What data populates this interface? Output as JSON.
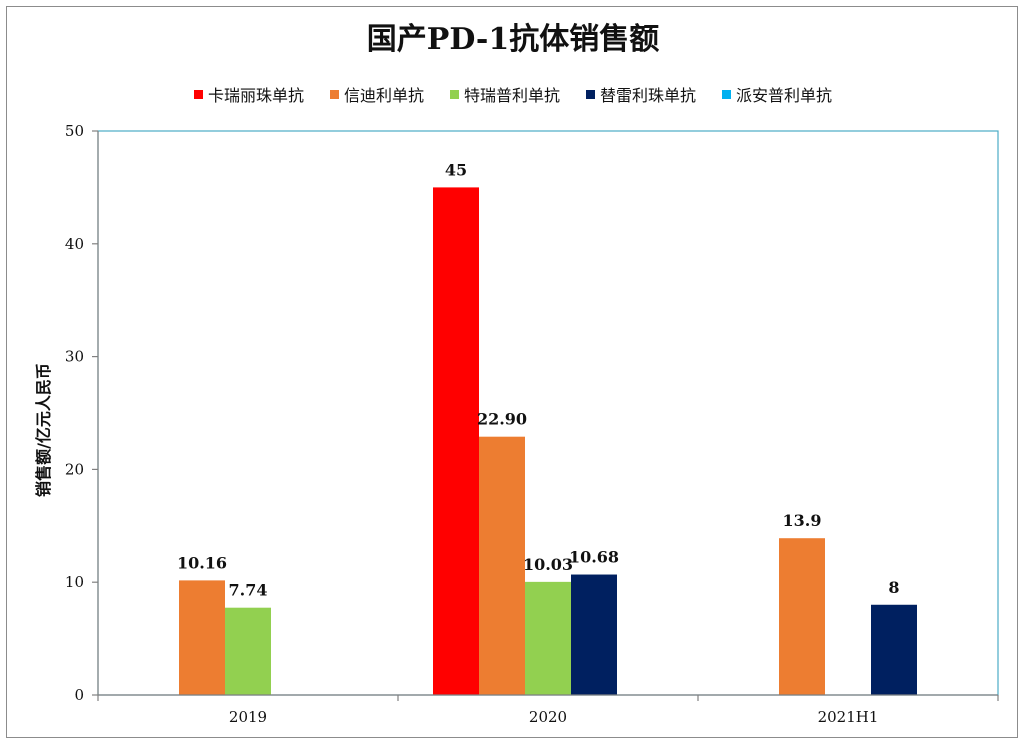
{
  "chart_data": {
    "type": "bar",
    "title": "国产PD-1抗体销售额",
    "ylabel": "销售额/亿元人民币",
    "xlabel": "",
    "ylim": [
      0,
      50
    ],
    "yticks": [
      0,
      10,
      20,
      30,
      40,
      50
    ],
    "categories": [
      "2019",
      "2020",
      "2021H1"
    ],
    "legend_position": "top",
    "grid": false,
    "series": [
      {
        "name": "卡瑞丽珠单抗",
        "color": "#ff0000",
        "values": [
          null,
          45,
          null
        ],
        "labels": [
          "",
          "45",
          ""
        ]
      },
      {
        "name": "信迪利单抗",
        "color": "#ed7d31",
        "values": [
          10.16,
          22.9,
          13.9
        ],
        "labels": [
          "10.16",
          "22.90",
          "13.9"
        ]
      },
      {
        "name": "特瑞普利单抗",
        "color": "#92d050",
        "values": [
          7.74,
          10.03,
          null
        ],
        "labels": [
          "7.74",
          "10.03",
          ""
        ]
      },
      {
        "name": "替雷利珠单抗",
        "color": "#002060",
        "values": [
          null,
          10.68,
          8
        ],
        "labels": [
          "",
          "10.68",
          "8"
        ]
      },
      {
        "name": "派安普利单抗",
        "color": "#00b0f0",
        "values": [
          null,
          null,
          null
        ],
        "labels": [
          "",
          "",
          ""
        ]
      }
    ]
  }
}
